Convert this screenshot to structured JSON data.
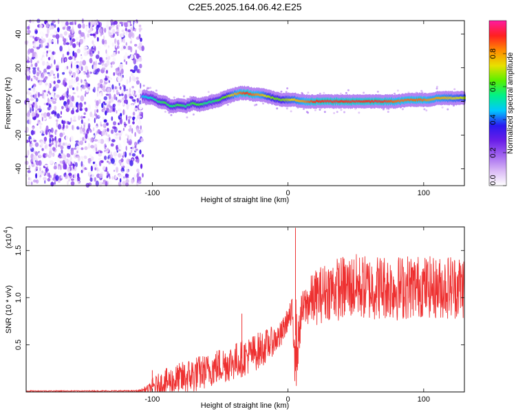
{
  "chart_data": [
    {
      "type": "heatmap",
      "title": "C2E5.2025.164.06.42.E25",
      "xlabel": "Height of straight line (km)",
      "ylabel": "Frequency (Hz)",
      "xlim": [
        -193,
        130
      ],
      "ylim": [
        -50,
        48
      ],
      "x_ticks": [
        -100,
        0,
        100
      ],
      "y_ticks": [
        -40,
        -20,
        0,
        20,
        40
      ],
      "tick_labels": {
        "x": [
          "-100",
          "0",
          "100"
        ],
        "y": [
          "-40",
          "-20",
          "0",
          "20",
          "40"
        ]
      },
      "colorbar": {
        "label": "Normalized spectral amplitude",
        "range": [
          0,
          1
        ],
        "ticks": [
          0.0,
          0.2,
          0.4,
          0.6,
          0.8
        ],
        "tick_labels": [
          "0.0",
          "0.2",
          "0.4",
          "0.6",
          "0.8"
        ],
        "colors": [
          "#ffffff",
          "#d9b8f5",
          "#a266f0",
          "#6a1ee8",
          "#2a18f0",
          "#00c8ff",
          "#00f08a",
          "#58f000",
          "#e8e000",
          "#ff8c00",
          "#ff2020",
          "#ff1aa0"
        ]
      },
      "noise_region_x": [
        -193,
        -107
      ],
      "ridge": {
        "x": [
          -107,
          -100,
          -95,
          -90,
          -85,
          -80,
          -75,
          -70,
          -65,
          -60,
          -55,
          -50,
          -45,
          -40,
          -35,
          -30,
          -25,
          -20,
          -15,
          -10,
          -5,
          0,
          5,
          10,
          20,
          30,
          40,
          50,
          60,
          70,
          80,
          90,
          100,
          105,
          110,
          120,
          130
        ],
        "freq": [
          3,
          2,
          0,
          -1,
          -3,
          -2,
          -3,
          -1,
          -2,
          -1,
          0,
          1,
          3,
          4,
          5,
          5,
          4,
          4,
          3,
          2,
          1,
          1,
          1,
          0,
          0,
          0,
          0,
          0,
          0,
          0,
          0,
          1,
          1,
          1,
          2,
          2,
          2
        ],
        "amplitude": [
          0.45,
          0.5,
          0.55,
          0.6,
          0.55,
          0.6,
          0.55,
          0.6,
          0.6,
          0.55,
          0.55,
          0.6,
          0.65,
          0.75,
          0.85,
          0.9,
          0.85,
          0.8,
          0.7,
          0.65,
          0.65,
          0.7,
          0.75,
          0.8,
          0.9,
          0.9,
          0.9,
          0.9,
          0.9,
          0.9,
          0.85,
          0.85,
          0.85,
          0.8,
          0.8,
          0.75,
          0.7
        ]
      }
    },
    {
      "type": "line",
      "xlabel": "Height of straight line (km)",
      "ylabel": "SNR (10 * v/v)",
      "y_multiplier_label": "(x10",
      "y_multiplier_exp": "4",
      "xlim": [
        -193,
        130
      ],
      "ylim": [
        0,
        1.75
      ],
      "x_ticks": [
        -100,
        0,
        100
      ],
      "y_ticks": [
        0.5,
        1.0,
        1.5
      ],
      "tick_labels": {
        "x": [
          "-100",
          "0",
          "100"
        ],
        "y": [
          "0.5",
          "1.0",
          "1.5"
        ]
      },
      "color": "#ee3030",
      "envelope": {
        "x": [
          -193,
          -150,
          -110,
          -102,
          -100,
          -95,
          -90,
          -80,
          -70,
          -60,
          -50,
          -40,
          -30,
          -20,
          -10,
          -5,
          0,
          3,
          5,
          6,
          7,
          8,
          10,
          15,
          20,
          30,
          40,
          50,
          60,
          70,
          80,
          90,
          100,
          110,
          120,
          130
        ],
        "base": [
          0.01,
          0.01,
          0.01,
          0.03,
          0.05,
          0.08,
          0.1,
          0.13,
          0.18,
          0.22,
          0.28,
          0.32,
          0.38,
          0.45,
          0.55,
          0.6,
          0.78,
          0.8,
          0.7,
          0.5,
          0.4,
          0.6,
          0.85,
          0.95,
          1.0,
          1.08,
          1.1,
          1.12,
          1.1,
          1.12,
          1.1,
          1.12,
          1.12,
          1.1,
          1.12,
          1.12
        ],
        "spread": [
          0.005,
          0.005,
          0.008,
          0.06,
          0.1,
          0.12,
          0.15,
          0.18,
          0.2,
          0.18,
          0.2,
          0.2,
          0.2,
          0.2,
          0.15,
          0.15,
          0.12,
          0.2,
          0.6,
          0.5,
          0.2,
          0.25,
          0.2,
          0.25,
          0.3,
          0.32,
          0.35,
          0.35,
          0.35,
          0.35,
          0.35,
          0.35,
          0.33,
          0.33,
          0.35,
          0.35
        ]
      },
      "spikes": [
        {
          "x": -100,
          "y": 0.23
        },
        {
          "x": -34,
          "y": 0.83
        },
        {
          "x": 5.5,
          "y": 1.74
        },
        {
          "x": 6.2,
          "y": 0.27
        }
      ]
    }
  ]
}
